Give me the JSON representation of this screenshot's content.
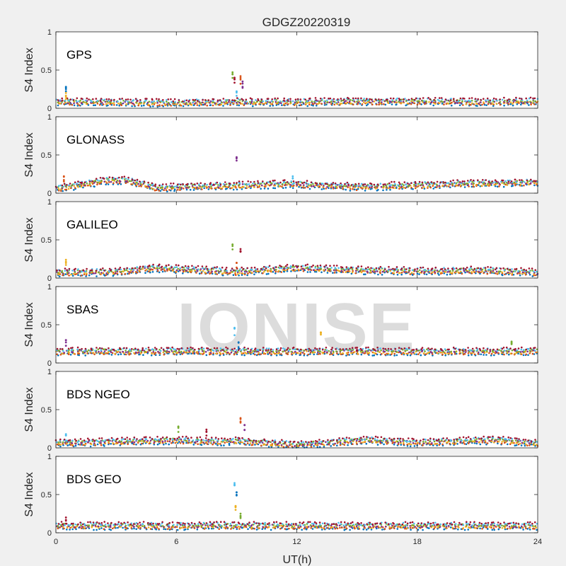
{
  "chart_data": {
    "type": "scatter",
    "title": "GDGZ20220319",
    "xlabel": "UT(h)",
    "ylabel": "S4 Index",
    "xlim": [
      0,
      24
    ],
    "ylim": [
      0,
      1
    ],
    "x_ticks": [
      "0",
      "6",
      "12",
      "18",
      "24"
    ],
    "y_ticks": [
      "0",
      "0.5",
      "1"
    ],
    "watermark": "IONISE",
    "colors": [
      "#0072BD",
      "#D95319",
      "#EDB120",
      "#7E2F8E",
      "#77AC30",
      "#4DBEEE",
      "#A2142F"
    ],
    "panels": [
      {
        "name": "GPS",
        "baseline": [
          [
            0,
            0.08
          ],
          [
            3,
            0.08
          ],
          [
            6,
            0.07
          ],
          [
            9,
            0.08
          ],
          [
            12,
            0.08
          ],
          [
            15,
            0.09
          ],
          [
            18,
            0.09
          ],
          [
            21,
            0.08
          ],
          [
            24,
            0.09
          ]
        ],
        "spikes": [
          [
            0.5,
            0.28
          ],
          [
            0.5,
            0.2
          ],
          [
            8.8,
            0.47
          ],
          [
            8.9,
            0.4
          ],
          [
            9.2,
            0.42
          ],
          [
            9.3,
            0.35
          ],
          [
            9.0,
            0.22
          ]
        ]
      },
      {
        "name": "GLONASS",
        "baseline": [
          [
            0,
            0.06
          ],
          [
            2.5,
            0.16
          ],
          [
            3.5,
            0.17
          ],
          [
            5,
            0.07
          ],
          [
            9,
            0.1
          ],
          [
            11.5,
            0.12
          ],
          [
            15,
            0.08
          ],
          [
            20,
            0.12
          ],
          [
            24,
            0.14
          ]
        ],
        "spikes": [
          [
            0.4,
            0.22
          ],
          [
            9.0,
            0.47
          ],
          [
            11.8,
            0.22
          ]
        ]
      },
      {
        "name": "GALILEO",
        "baseline": [
          [
            0,
            0.07
          ],
          [
            3,
            0.08
          ],
          [
            5,
            0.13
          ],
          [
            9,
            0.08
          ],
          [
            12,
            0.13
          ],
          [
            15,
            0.1
          ],
          [
            18,
            0.09
          ],
          [
            21,
            0.1
          ],
          [
            24,
            0.07
          ]
        ],
        "spikes": [
          [
            0.5,
            0.24
          ],
          [
            8.8,
            0.44
          ],
          [
            9.2,
            0.38
          ],
          [
            9.0,
            0.2
          ]
        ]
      },
      {
        "name": "SBAS",
        "baseline": [
          [
            0,
            0.15
          ],
          [
            24,
            0.15
          ]
        ],
        "spikes": [
          [
            0.5,
            0.3
          ],
          [
            8.9,
            0.46
          ],
          [
            9.1,
            0.27
          ],
          [
            13.2,
            0.4
          ],
          [
            22.7,
            0.28
          ],
          [
            15,
            0.2
          ]
        ]
      },
      {
        "name": "BDS NGEO",
        "baseline": [
          [
            0,
            0.06
          ],
          [
            6,
            0.1
          ],
          [
            8,
            0.08
          ],
          [
            9,
            0.09
          ],
          [
            12,
            0.04
          ],
          [
            15.5,
            0.1
          ],
          [
            18,
            0.07
          ],
          [
            22,
            0.1
          ],
          [
            24,
            0.06
          ]
        ],
        "spikes": [
          [
            6.1,
            0.28
          ],
          [
            7.5,
            0.24
          ],
          [
            9.2,
            0.39
          ],
          [
            9.4,
            0.3
          ],
          [
            0.5,
            0.18
          ]
        ]
      },
      {
        "name": "BDS GEO",
        "baseline": [
          [
            0,
            0.09
          ],
          [
            24,
            0.09
          ]
        ],
        "spikes": [
          [
            8.9,
            0.65
          ],
          [
            9.0,
            0.53
          ],
          [
            8.95,
            0.35
          ],
          [
            9.2,
            0.25
          ],
          [
            0.5,
            0.2
          ]
        ]
      }
    ]
  }
}
